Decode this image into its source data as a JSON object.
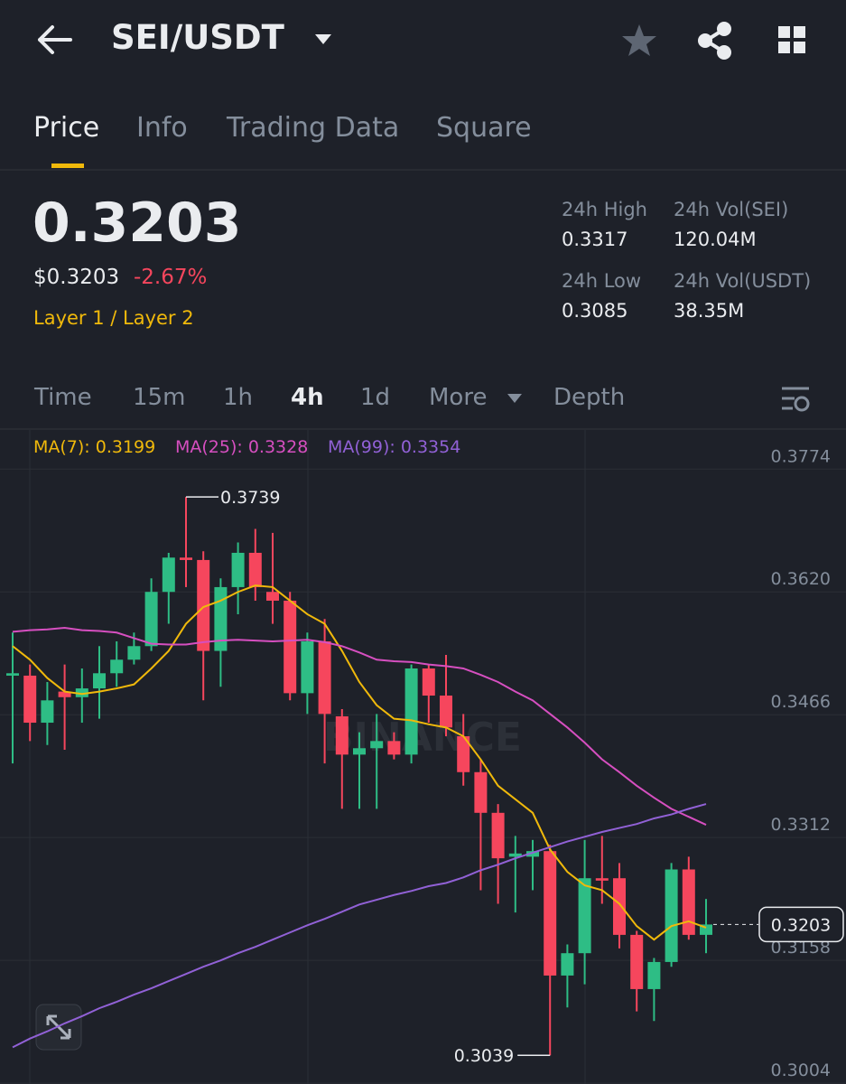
{
  "header": {
    "title": "SEI/USDT"
  },
  "tabs": [
    "Price",
    "Info",
    "Trading Data",
    "Square"
  ],
  "ticker": {
    "price": "0.3203",
    "usd_price": "$0.3203",
    "change": "-2.67%",
    "tags": "Layer 1 / Layer 2"
  },
  "stats": [
    {
      "label": "24h High",
      "value": "0.3317"
    },
    {
      "label": "24h Vol(SEI)",
      "value": "120.04M"
    },
    {
      "label": "24h Low",
      "value": "0.3085"
    },
    {
      "label": "24h Vol(USDT)",
      "value": "38.35M"
    }
  ],
  "intervals": [
    "Time",
    "15m",
    "1h",
    "4h",
    "1d",
    "More",
    "Depth"
  ],
  "chart_data": {
    "type": "candlestick",
    "watermark": "BINANCE",
    "up_color": "#2ebd85",
    "down_color": "#f6465d",
    "open": [
      0.3515,
      0.3515,
      0.3456,
      0.3495,
      0.3488,
      0.3499,
      0.3518,
      0.3535,
      0.3552,
      0.362,
      0.3663,
      0.366,
      0.3546,
      0.3626,
      0.3669,
      0.362,
      0.3609,
      0.3493,
      0.3558,
      0.3464,
      0.3416,
      0.3424,
      0.3433,
      0.3416,
      0.3524,
      0.349,
      0.3439,
      0.3394,
      0.3343,
      0.3288,
      0.3288,
      0.3295,
      0.3139,
      0.3167,
      0.3261,
      0.3261,
      0.319,
      0.3122,
      0.3156,
      0.3272,
      0.319
    ],
    "high": [
      0.3569,
      0.3529,
      0.3507,
      0.3529,
      0.3524,
      0.3552,
      0.3558,
      0.3569,
      0.3637,
      0.3669,
      0.3739,
      0.3671,
      0.3637,
      0.3682,
      0.3699,
      0.3694,
      0.362,
      0.3569,
      0.3586,
      0.3473,
      0.3444,
      0.3467,
      0.3444,
      0.3529,
      0.3529,
      0.3541,
      0.3467,
      0.341,
      0.3354,
      0.3314,
      0.3309,
      0.3303,
      0.3178,
      0.3309,
      0.3314,
      0.328,
      0.3195,
      0.3161,
      0.328,
      0.3288,
      0.3235
    ],
    "low": [
      0.3405,
      0.3433,
      0.3428,
      0.3422,
      0.3456,
      0.3461,
      0.3501,
      0.3529,
      0.3546,
      0.358,
      0.3626,
      0.3484,
      0.3501,
      0.3592,
      0.3609,
      0.358,
      0.3484,
      0.3467,
      0.3405,
      0.3348,
      0.3348,
      0.3348,
      0.341,
      0.3405,
      0.3456,
      0.3439,
      0.3377,
      0.3246,
      0.3229,
      0.3218,
      0.3246,
      0.3039,
      0.3099,
      0.3128,
      0.3229,
      0.3173,
      0.3094,
      0.3082,
      0.315,
      0.3184,
      0.3167
    ],
    "close": [
      0.3518,
      0.3456,
      0.3484,
      0.3488,
      0.3499,
      0.3518,
      0.3535,
      0.3552,
      0.362,
      0.3663,
      0.366,
      0.3546,
      0.3626,
      0.3669,
      0.3626,
      0.3609,
      0.3493,
      0.3558,
      0.3467,
      0.3416,
      0.3424,
      0.3433,
      0.3416,
      0.3524,
      0.349,
      0.345,
      0.3394,
      0.3343,
      0.3286,
      0.3292,
      0.3295,
      0.3139,
      0.3167,
      0.3261,
      0.3258,
      0.319,
      0.3122,
      0.3156,
      0.3272,
      0.319,
      0.3203
    ],
    "series": [
      {
        "name": "MA(7): 0.3199",
        "color": "#f0b90b",
        "values": [
          0.3552,
          0.3535,
          0.3512,
          0.3495,
          0.3492,
          0.3495,
          0.3499,
          0.3504,
          0.3524,
          0.3546,
          0.358,
          0.3601,
          0.3609,
          0.362,
          0.3628,
          0.3626,
          0.3609,
          0.3592,
          0.358,
          0.3546,
          0.3507,
          0.3478,
          0.3461,
          0.3459,
          0.3454,
          0.345,
          0.3439,
          0.341,
          0.3377,
          0.336,
          0.3343,
          0.3297,
          0.3269,
          0.3252,
          0.3246,
          0.3229,
          0.3201,
          0.3184,
          0.3201,
          0.3207,
          0.3199
        ]
      },
      {
        "name": "MA(25): 0.3328",
        "color": "#d64fc0",
        "values": [
          0.357,
          0.3572,
          0.3573,
          0.3575,
          0.3572,
          0.3571,
          0.3569,
          0.3562,
          0.3555,
          0.3554,
          0.3554,
          0.3557,
          0.3559,
          0.356,
          0.3559,
          0.3558,
          0.3559,
          0.356,
          0.3557,
          0.3552,
          0.3544,
          0.3535,
          0.3533,
          0.3532,
          0.3529,
          0.3527,
          0.3524,
          0.3516,
          0.3507,
          0.3495,
          0.3484,
          0.3467,
          0.345,
          0.3431,
          0.341,
          0.3394,
          0.3377,
          0.3362,
          0.3348,
          0.3338,
          0.3328
        ]
      },
      {
        "name": "MA(99): 0.3354",
        "color": "#9161d6",
        "values": [
          0.3049,
          0.306,
          0.3069,
          0.3079,
          0.3088,
          0.3098,
          0.3106,
          0.3115,
          0.3123,
          0.3132,
          0.3141,
          0.315,
          0.3158,
          0.3167,
          0.3175,
          0.3184,
          0.3193,
          0.3202,
          0.321,
          0.3219,
          0.3228,
          0.3234,
          0.324,
          0.3245,
          0.3251,
          0.3255,
          0.3262,
          0.3271,
          0.3278,
          0.3286,
          0.3293,
          0.33,
          0.3307,
          0.3313,
          0.3319,
          0.3324,
          0.3329,
          0.3336,
          0.3341,
          0.3348,
          0.3354
        ]
      }
    ],
    "ylim": [
      0.3003,
      0.3823
    ],
    "yticks": [
      0.3774,
      {
        "value": 0.362,
        "label": "0.3620"
      },
      0.3466,
      0.3312,
      0.3158,
      0.3004
    ],
    "grid": true
  }
}
